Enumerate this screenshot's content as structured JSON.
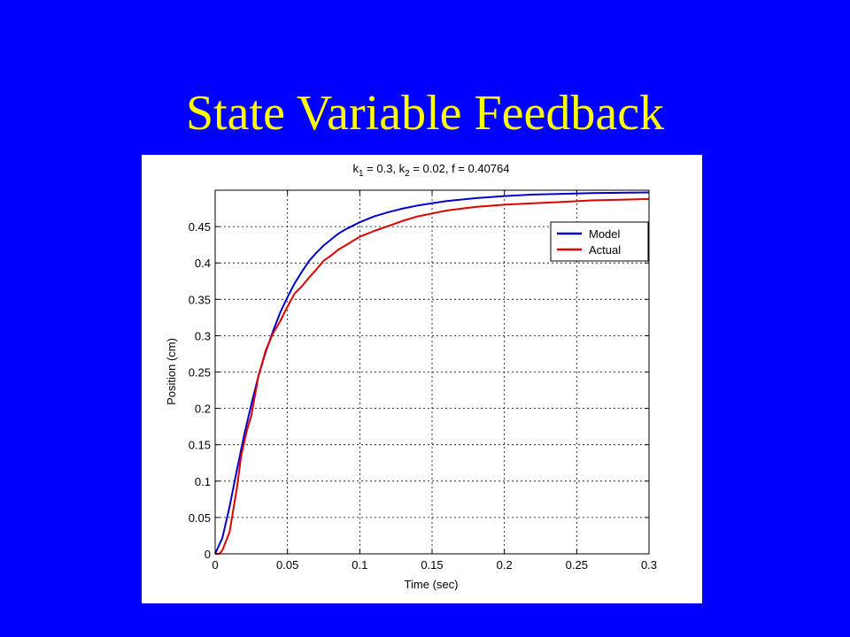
{
  "slide": {
    "title": "State Variable Feedback"
  },
  "chart_data": {
    "type": "line",
    "title": {
      "parts": [
        {
          "text": "k",
          "sub": false
        },
        {
          "text": "1",
          "sub": true
        },
        {
          "text": " = 0.3, k",
          "sub": false
        },
        {
          "text": "2",
          "sub": true
        },
        {
          "text": " = 0.02, f = 0.40764",
          "sub": false
        }
      ]
    },
    "xlabel": "Time (sec)",
    "ylabel": "Position (cm)",
    "xlim": [
      0,
      0.3
    ],
    "ylim": [
      0,
      0.5
    ],
    "xticks": [
      0,
      0.05,
      0.1,
      0.15,
      0.2,
      0.25,
      0.3
    ],
    "xtick_labels": [
      "0",
      "0.05",
      "0.1",
      "0.15",
      "0.2",
      "0.25",
      "0.3"
    ],
    "yticks": [
      0,
      0.05,
      0.1,
      0.15,
      0.2,
      0.25,
      0.3,
      0.35,
      0.4,
      0.45
    ],
    "ytick_labels": [
      "0",
      "0.05",
      "0.1",
      "0.15",
      "0.2",
      "0.25",
      "0.3",
      "0.35",
      "0.4",
      "0.45"
    ],
    "grid": true,
    "legend_position": "top-right",
    "series": [
      {
        "name": "Model",
        "color": "#0000cc",
        "x": [
          0,
          0.005,
          0.01,
          0.015,
          0.02,
          0.025,
          0.03,
          0.035,
          0.04,
          0.045,
          0.05,
          0.055,
          0.06,
          0.065,
          0.07,
          0.075,
          0.08,
          0.085,
          0.09,
          0.095,
          0.1,
          0.11,
          0.12,
          0.13,
          0.14,
          0.15,
          0.16,
          0.18,
          0.2,
          0.22,
          0.24,
          0.26,
          0.28,
          0.3
        ],
        "y": [
          0,
          0.022,
          0.065,
          0.115,
          0.163,
          0.205,
          0.245,
          0.278,
          0.306,
          0.332,
          0.353,
          0.372,
          0.388,
          0.403,
          0.414,
          0.424,
          0.432,
          0.44,
          0.446,
          0.451,
          0.456,
          0.464,
          0.47,
          0.475,
          0.479,
          0.482,
          0.485,
          0.489,
          0.492,
          0.494,
          0.495,
          0.496,
          0.4965,
          0.497
        ]
      },
      {
        "name": "Actual",
        "color": "#dd0000",
        "x": [
          0,
          0.003,
          0.005,
          0.01,
          0.015,
          0.018,
          0.022,
          0.025,
          0.03,
          0.035,
          0.04,
          0.045,
          0.05,
          0.055,
          0.06,
          0.065,
          0.07,
          0.075,
          0.08,
          0.085,
          0.09,
          0.1,
          0.105,
          0.11,
          0.12,
          0.13,
          0.14,
          0.15,
          0.16,
          0.18,
          0.2,
          0.22,
          0.24,
          0.26,
          0.28,
          0.3
        ],
        "y": [
          0,
          0,
          0.005,
          0.03,
          0.09,
          0.135,
          0.17,
          0.19,
          0.245,
          0.28,
          0.303,
          0.32,
          0.34,
          0.358,
          0.368,
          0.38,
          0.391,
          0.403,
          0.41,
          0.418,
          0.424,
          0.436,
          0.44,
          0.444,
          0.451,
          0.458,
          0.464,
          0.468,
          0.472,
          0.477,
          0.48,
          0.482,
          0.484,
          0.486,
          0.487,
          0.488
        ]
      }
    ]
  }
}
